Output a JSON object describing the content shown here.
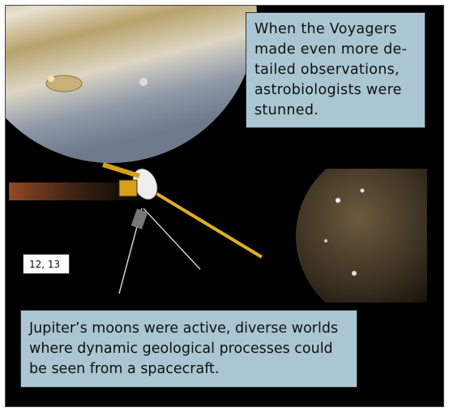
{
  "top_caption": {
    "lines": [
      "When the Voyagers",
      "made even more de-",
      "tailed observations,",
      "astrobiologists were",
      "stunned."
    ]
  },
  "page_label": "12, 13",
  "bottom_caption": {
    "lines": [
      "Jupiter’s moons were active, diverse worlds",
      "where dynamic geological processes could",
      "be seen from a spacecraft."
    ]
  }
}
